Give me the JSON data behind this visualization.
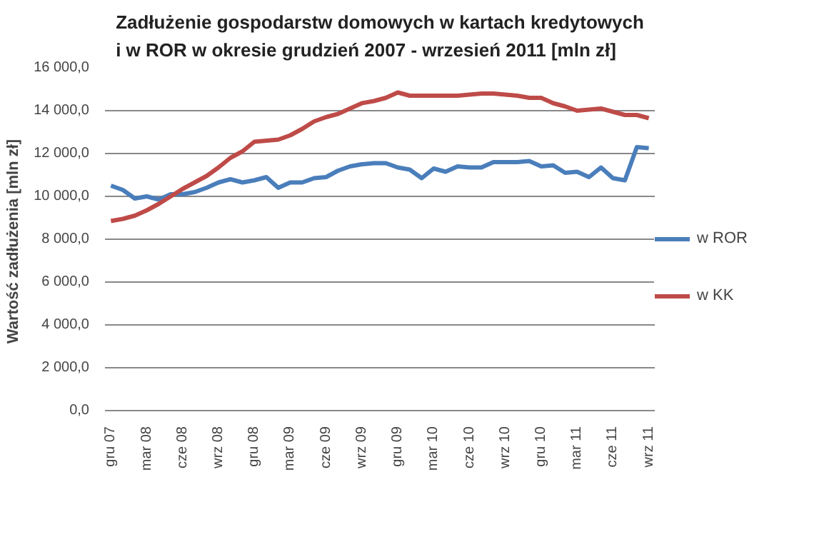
{
  "chart_data": {
    "type": "line",
    "title": "Zadłużenie gospodarstw domowych w kartach kredytowych\ni w ROR w okresie grudzień 2007 - wrzesień 2011 [mln zł]",
    "ylabel": "Wartość zadłużenia  [mln zł]",
    "categories": [
      "gru 07",
      null,
      null,
      "mar 08",
      null,
      null,
      "cze 08",
      null,
      null,
      "wrz 08",
      null,
      null,
      "gru 08",
      null,
      null,
      "mar 09",
      null,
      null,
      "cze 09",
      null,
      null,
      "wrz 09",
      null,
      null,
      "gru 09",
      null,
      null,
      "mar 10",
      null,
      null,
      "cze 10",
      null,
      null,
      "wrz 10",
      null,
      null,
      "gru 10",
      null,
      null,
      "mar 11",
      null,
      null,
      "cze 11",
      null,
      null,
      "wrz 11"
    ],
    "series": [
      {
        "name": "w ROR",
        "color": "#4a7ebb",
        "values": [
          10500,
          10300,
          9900,
          10000,
          9850,
          10100,
          10100,
          10200,
          10400,
          10650,
          10800,
          10650,
          10750,
          10900,
          10400,
          10650,
          10650,
          10850,
          10900,
          11200,
          11400,
          11500,
          11550,
          11550,
          11350,
          11250,
          10850,
          11300,
          11150,
          11400,
          11350,
          11350,
          11600,
          11600,
          11600,
          11650,
          11400,
          11450,
          11100,
          11150,
          10900,
          11350,
          10850,
          10750,
          12300,
          12250
        ]
      },
      {
        "name": "w KK",
        "color": "#be4b48",
        "values": [
          8850,
          8950,
          9100,
          9350,
          9650,
          10000,
          10350,
          10650,
          10950,
          11350,
          11800,
          12100,
          12550,
          12600,
          12650,
          12850,
          13150,
          13500,
          13700,
          13850,
          14100,
          14350,
          14450,
          14600,
          14850,
          14700,
          14700,
          14700,
          14700,
          14700,
          14750,
          14800,
          14800,
          14750,
          14700,
          14600,
          14600,
          14350,
          14200,
          14000,
          14050,
          14100,
          13950,
          13800,
          13800,
          13650
        ]
      }
    ],
    "ylim": [
      0,
      16000
    ],
    "yticks": [
      {
        "value": 0,
        "label": "0,0"
      },
      {
        "value": 2000,
        "label": "2 000,0"
      },
      {
        "value": 4000,
        "label": "4 000,0"
      },
      {
        "value": 6000,
        "label": "6 000,0"
      },
      {
        "value": 8000,
        "label": "8 000,0"
      },
      {
        "value": 10000,
        "label": "10 000,0"
      },
      {
        "value": 12000,
        "label": "12 000,0"
      },
      {
        "value": 14000,
        "label": "14 000,0"
      },
      {
        "value": 16000,
        "label": "16 000,0"
      }
    ],
    "grid": "y",
    "legend": "right",
    "marker": "none",
    "line_style": "solid"
  }
}
